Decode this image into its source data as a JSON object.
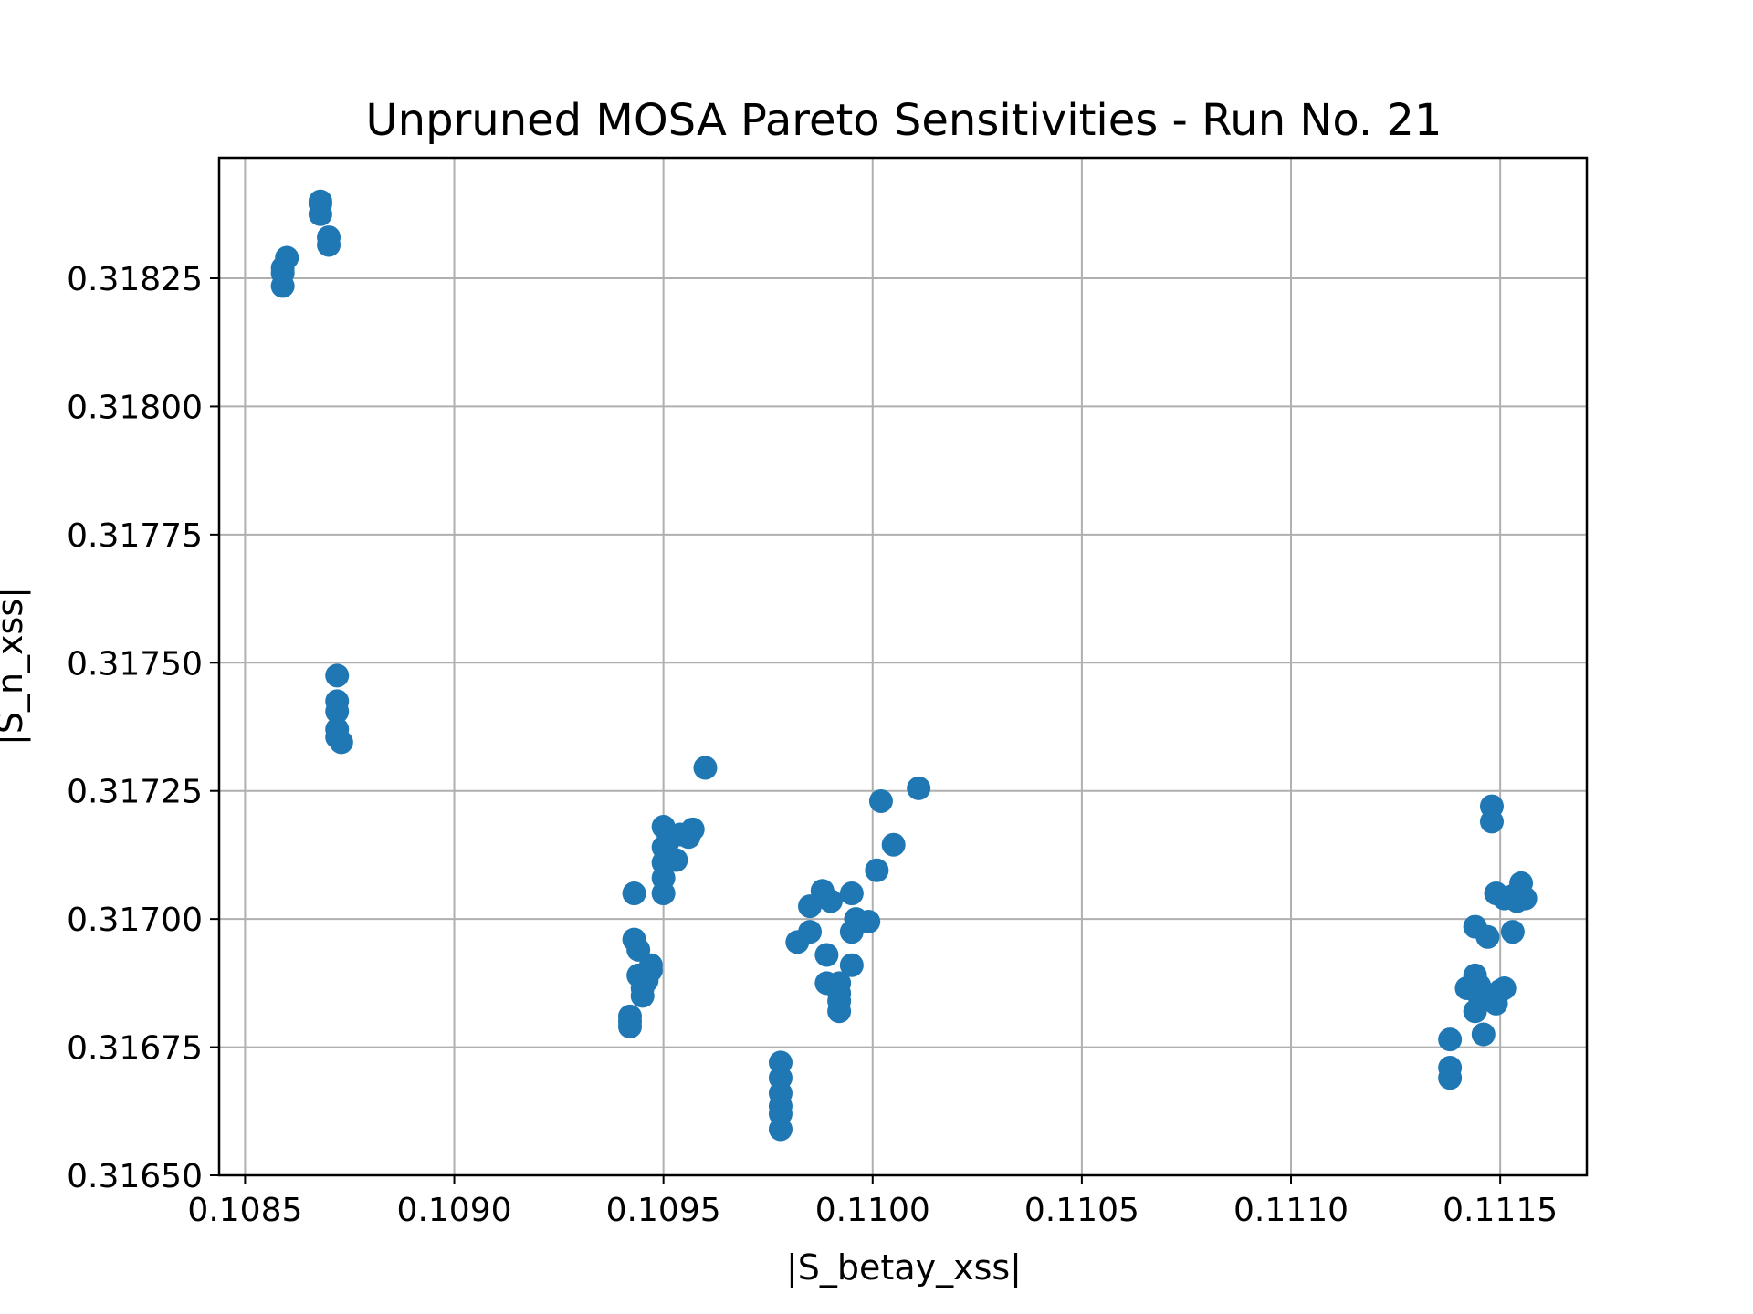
{
  "chart_data": {
    "type": "scatter",
    "title": "Unpruned MOSA Pareto Sensitivities - Run No. 21",
    "xlabel": "|S_betay_xss|",
    "ylabel": "|S_n_xss|",
    "xlim": [
      0.108438,
      0.111707
    ],
    "ylim": [
      0.3165,
      0.318485
    ],
    "xticks": [
      0.1085,
      0.109,
      0.1095,
      0.11,
      0.1105,
      0.111,
      0.1115
    ],
    "xtick_labels": [
      "0.1085",
      "0.1090",
      "0.1095",
      "0.1100",
      "0.1105",
      "0.1110",
      "0.1115"
    ],
    "yticks": [
      0.3165,
      0.31675,
      0.317,
      0.31725,
      0.3175,
      0.31775,
      0.318,
      0.31825
    ],
    "ytick_labels": [
      "0.31650",
      "0.31675",
      "0.31700",
      "0.31725",
      "0.31750",
      "0.31775",
      "0.31800",
      "0.31825"
    ],
    "grid": true,
    "marker_color": "#1f77b4",
    "series": [
      {
        "x": [
          0.10859,
          0.10859,
          0.10859,
          0.1086,
          0.10868,
          0.10868,
          0.10868,
          0.1087,
          0.1087,
          0.10872,
          0.10872,
          0.10872,
          0.10872,
          0.10872,
          0.10873,
          0.10942,
          0.10942,
          0.10942,
          0.10943,
          0.10943,
          0.10944,
          0.10944,
          0.10945,
          0.10945,
          0.10946,
          0.10947,
          0.10947,
          0.1095,
          0.1095,
          0.1095,
          0.1095,
          0.1095,
          0.10951,
          0.10953,
          0.10954,
          0.10956,
          0.10957,
          0.1096,
          0.10978,
          0.10978,
          0.10978,
          0.10978,
          0.10978,
          0.10978,
          0.10982,
          0.10985,
          0.10985,
          0.10988,
          0.10989,
          0.10989,
          0.1099,
          0.10992,
          0.10992,
          0.10992,
          0.10992,
          0.10995,
          0.10995,
          0.10995,
          0.10996,
          0.10999,
          0.11001,
          0.11002,
          0.11005,
          0.11011,
          0.11138,
          0.11138,
          0.11138,
          0.11142,
          0.11144,
          0.11144,
          0.11144,
          0.11145,
          0.11145,
          0.11146,
          0.11147,
          0.11148,
          0.11148,
          0.11149,
          0.11149,
          0.1115,
          0.11151,
          0.11151,
          0.11153,
          0.11153,
          0.11154,
          0.11155,
          0.11156
        ],
        "y": [
          0.318235,
          0.31826,
          0.31827,
          0.31829,
          0.318375,
          0.318395,
          0.3184,
          0.318315,
          0.31833,
          0.317475,
          0.317425,
          0.317405,
          0.31737,
          0.317355,
          0.317345,
          0.31679,
          0.3168,
          0.31681,
          0.31705,
          0.31696,
          0.31694,
          0.31689,
          0.31685,
          0.316865,
          0.31688,
          0.3169,
          0.31691,
          0.31705,
          0.31708,
          0.31711,
          0.31714,
          0.31718,
          0.31715,
          0.317115,
          0.317165,
          0.31716,
          0.317175,
          0.317295,
          0.31659,
          0.31662,
          0.316635,
          0.31666,
          0.31669,
          0.31672,
          0.316955,
          0.317025,
          0.316975,
          0.317055,
          0.31693,
          0.316875,
          0.317035,
          0.31682,
          0.31684,
          0.316855,
          0.316875,
          0.31691,
          0.316975,
          0.31705,
          0.317,
          0.316995,
          0.317095,
          0.31723,
          0.317145,
          0.317255,
          0.31669,
          0.31671,
          0.316765,
          0.316865,
          0.316985,
          0.31689,
          0.31682,
          0.31685,
          0.31687,
          0.316775,
          0.316965,
          0.31722,
          0.31719,
          0.31705,
          0.316835,
          0.31686,
          0.316865,
          0.31704,
          0.316975,
          0.317045,
          0.317035,
          0.31707,
          0.31704
        ]
      }
    ]
  }
}
